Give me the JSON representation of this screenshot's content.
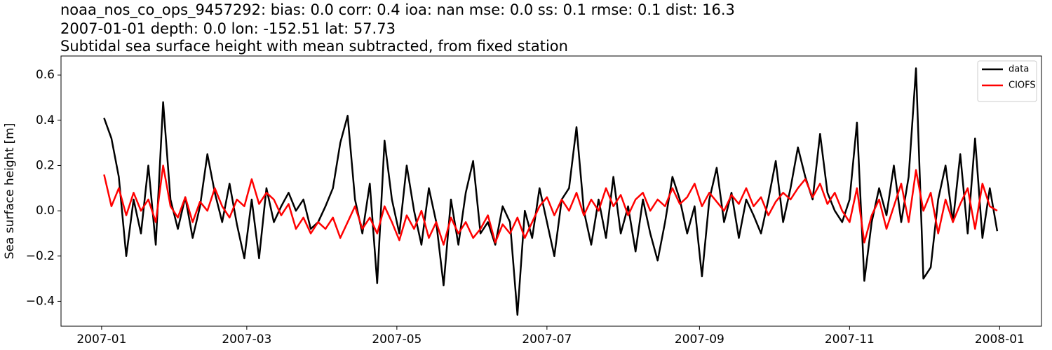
{
  "chart_data": {
    "type": "line",
    "title": [
      "noaa_nos_co_ops_9457292: bias: 0.0  corr: 0.4  ioa: nan  mse: 0.0  ss: 0.1  rmse: 0.1  dist: 16.3",
      "2007-01-01 depth: 0.0 lon: -152.51 lat: 57.73",
      "Subtidal sea surface height with mean subtracted, from fixed station"
    ],
    "ylabel": "Sea surface height [m]",
    "x": [
      1,
      4,
      7,
      10,
      13,
      16,
      19,
      22,
      25,
      28,
      31,
      34,
      37,
      40,
      43,
      46,
      49,
      52,
      55,
      58,
      61,
      64,
      67,
      70,
      73,
      76,
      79,
      82,
      85,
      88,
      91,
      94,
      97,
      100,
      103,
      106,
      109,
      112,
      115,
      118,
      121,
      124,
      127,
      130,
      133,
      136,
      139,
      142,
      145,
      148,
      151,
      154,
      157,
      160,
      163,
      166,
      169,
      172,
      175,
      178,
      181,
      184,
      187,
      190,
      193,
      196,
      199,
      202,
      205,
      208,
      211,
      214,
      217,
      220,
      223,
      226,
      229,
      232,
      235,
      238,
      241,
      244,
      247,
      250,
      253,
      256,
      259,
      262,
      265,
      268,
      271,
      274,
      277,
      280,
      283,
      286,
      289,
      292,
      295,
      298,
      301,
      304,
      307,
      310,
      313,
      316,
      319,
      322,
      325,
      328,
      331,
      334,
      337,
      340,
      343,
      346,
      349,
      352,
      355,
      358,
      361,
      364
    ],
    "series": [
      {
        "name": "data",
        "color": "#000000",
        "values": [
          0.41,
          0.32,
          0.15,
          -0.2,
          0.05,
          -0.1,
          0.2,
          -0.15,
          0.48,
          0.05,
          -0.08,
          0.06,
          -0.12,
          0.02,
          0.25,
          0.08,
          -0.05,
          0.12,
          -0.06,
          -0.21,
          0.05,
          -0.21,
          0.1,
          -0.05,
          0.02,
          0.08,
          0.0,
          0.05,
          -0.08,
          -0.05,
          0.02,
          0.1,
          0.3,
          0.42,
          0.05,
          -0.1,
          0.12,
          -0.32,
          0.31,
          0.05,
          -0.1,
          0.2,
          0.0,
          -0.15,
          0.1,
          -0.05,
          -0.33,
          0.05,
          -0.15,
          0.08,
          0.22,
          -0.1,
          -0.05,
          -0.15,
          0.02,
          -0.05,
          -0.46,
          0.0,
          -0.12,
          0.1,
          -0.05,
          -0.2,
          0.05,
          0.1,
          0.37,
          0.0,
          -0.15,
          0.05,
          -0.12,
          0.15,
          -0.1,
          0.02,
          -0.18,
          0.05,
          -0.1,
          -0.22,
          -0.05,
          0.15,
          0.05,
          -0.1,
          0.02,
          -0.29,
          0.05,
          0.19,
          -0.05,
          0.08,
          -0.12,
          0.05,
          -0.02,
          -0.1,
          0.05,
          0.22,
          -0.05,
          0.1,
          0.28,
          0.15,
          0.05,
          0.34,
          0.08,
          0.0,
          -0.05,
          0.05,
          0.39,
          -0.31,
          -0.05,
          0.1,
          -0.02,
          0.2,
          -0.05,
          0.15,
          0.63,
          -0.3,
          -0.25,
          0.05,
          0.2,
          -0.05,
          0.25,
          -0.1,
          0.32,
          -0.12,
          0.1,
          -0.09
        ]
      },
      {
        "name": "CIOFS",
        "color": "#ff0000",
        "values": [
          0.16,
          0.02,
          0.1,
          -0.02,
          0.08,
          0.0,
          0.05,
          -0.05,
          0.2,
          0.02,
          -0.03,
          0.06,
          -0.05,
          0.04,
          0.0,
          0.1,
          0.02,
          -0.03,
          0.05,
          0.02,
          0.14,
          0.03,
          0.08,
          0.05,
          -0.02,
          0.03,
          -0.08,
          -0.03,
          -0.1,
          -0.05,
          -0.08,
          -0.03,
          -0.12,
          -0.05,
          0.02,
          -0.08,
          -0.03,
          -0.1,
          0.02,
          -0.05,
          -0.13,
          -0.02,
          -0.08,
          0.0,
          -0.12,
          -0.05,
          -0.15,
          -0.03,
          -0.1,
          -0.05,
          -0.12,
          -0.08,
          -0.02,
          -0.14,
          -0.06,
          -0.1,
          -0.03,
          -0.12,
          -0.05,
          0.02,
          0.06,
          -0.02,
          0.05,
          0.0,
          0.08,
          -0.02,
          0.05,
          0.0,
          0.1,
          0.02,
          0.07,
          -0.02,
          0.05,
          0.08,
          0.0,
          0.05,
          0.02,
          0.1,
          0.03,
          0.06,
          0.12,
          0.02,
          0.08,
          0.04,
          0.0,
          0.07,
          0.03,
          0.1,
          0.02,
          0.06,
          -0.02,
          0.04,
          0.08,
          0.05,
          0.1,
          0.14,
          0.06,
          0.12,
          0.03,
          0.08,
          0.0,
          -0.05,
          0.1,
          -0.14,
          -0.02,
          0.05,
          -0.08,
          0.02,
          0.12,
          -0.05,
          0.18,
          0.0,
          0.08,
          -0.1,
          0.05,
          -0.05,
          0.03,
          0.1,
          -0.08,
          0.12,
          0.02,
          0.0
        ]
      }
    ],
    "xlim": [
      -16.5,
      382
    ],
    "xticks": [
      {
        "value": 0,
        "label": "2007-01"
      },
      {
        "value": 59,
        "label": "2007-03"
      },
      {
        "value": 120,
        "label": "2007-05"
      },
      {
        "value": 181,
        "label": "2007-07"
      },
      {
        "value": 243,
        "label": "2007-09"
      },
      {
        "value": 304,
        "label": "2007-11"
      },
      {
        "value": 365,
        "label": "2008-01"
      }
    ],
    "ylim": [
      -0.51,
      0.684
    ],
    "yticks": [
      {
        "value": -0.4,
        "label": "−0.4"
      },
      {
        "value": -0.2,
        "label": "−0.2"
      },
      {
        "value": 0,
        "label": "0.0"
      },
      0.2,
      0.4,
      0.6
    ],
    "legend": "upper right",
    "grid": false
  }
}
